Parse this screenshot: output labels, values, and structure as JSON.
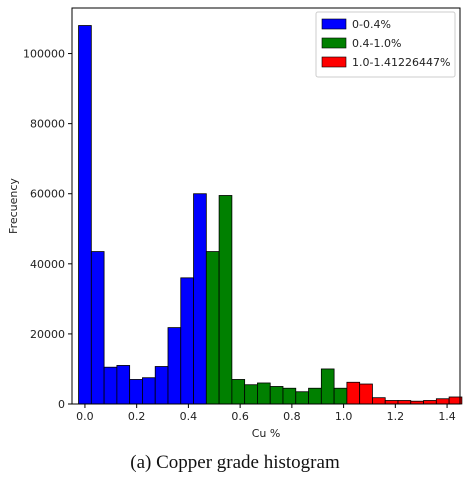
{
  "caption": "(a) Copper grade histogram",
  "chart_data": {
    "type": "bar",
    "xlabel": "Cu %",
    "ylabel": "Frecuency",
    "xlim": [
      -0.05,
      1.45
    ],
    "ylim": [
      0,
      113000
    ],
    "xticks": [
      "0.0",
      "0.2",
      "0.4",
      "0.6",
      "0.8",
      "1.0",
      "1.2",
      "1.4"
    ],
    "yticks": [
      "0",
      "20000",
      "40000",
      "60000",
      "80000",
      "100000"
    ],
    "legend_position": "top-right",
    "bin_width": 0.0494,
    "series": [
      {
        "name": "0-0.4%",
        "color": "#0000ff",
        "bins": [
          {
            "x": 0.0,
            "value": 108000
          },
          {
            "x": 0.0494,
            "value": 43500
          },
          {
            "x": 0.0988,
            "value": 10500
          },
          {
            "x": 0.1482,
            "value": 11000
          },
          {
            "x": 0.1976,
            "value": 7000
          },
          {
            "x": 0.247,
            "value": 7500
          },
          {
            "x": 0.2964,
            "value": 10700
          },
          {
            "x": 0.3458,
            "value": 21800
          },
          {
            "x": 0.3952,
            "value": 36000
          },
          {
            "x": 0.4446,
            "value": 60000
          }
        ]
      },
      {
        "name": "0.4-1.0%",
        "color": "#008000",
        "bins": [
          {
            "x": 0.494,
            "value": 43500
          },
          {
            "x": 0.5434,
            "value": 59500
          },
          {
            "x": 0.5928,
            "value": 7000
          },
          {
            "x": 0.6422,
            "value": 5500
          },
          {
            "x": 0.6916,
            "value": 6000
          },
          {
            "x": 0.741,
            "value": 5000
          },
          {
            "x": 0.7904,
            "value": 4500
          },
          {
            "x": 0.8398,
            "value": 3500
          },
          {
            "x": 0.8892,
            "value": 4500
          },
          {
            "x": 0.9386,
            "value": 10000
          },
          {
            "x": 0.988,
            "value": 4500
          }
        ]
      },
      {
        "name": "1.0-1.41226447%",
        "color": "#ff0000",
        "bins": [
          {
            "x": 1.0374,
            "value": 6200
          },
          {
            "x": 1.0868,
            "value": 5700
          },
          {
            "x": 1.1362,
            "value": 1800
          },
          {
            "x": 1.1856,
            "value": 1000
          },
          {
            "x": 1.235,
            "value": 1000
          },
          {
            "x": 1.2844,
            "value": 800
          },
          {
            "x": 1.3338,
            "value": 1000
          },
          {
            "x": 1.3832,
            "value": 1500
          },
          {
            "x": 1.4326,
            "value": 2000
          }
        ]
      }
    ]
  }
}
